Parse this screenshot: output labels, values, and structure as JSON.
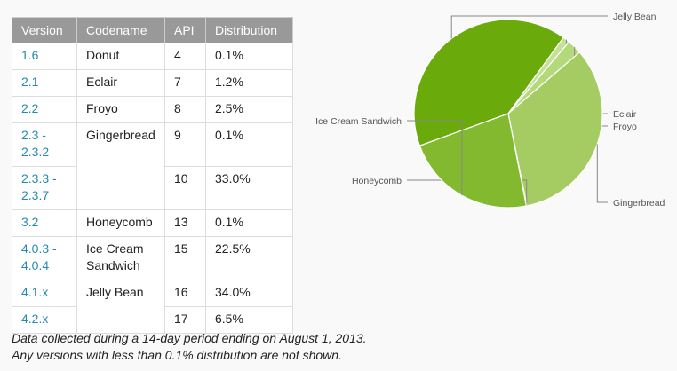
{
  "table": {
    "headers": [
      "Version",
      "Codename",
      "API",
      "Distribution"
    ],
    "rows": [
      {
        "version": "1.6",
        "codename": "Donut",
        "api": "4",
        "distribution": "0.1%"
      },
      {
        "version": "2.1",
        "codename": "Eclair",
        "api": "7",
        "distribution": "1.2%"
      },
      {
        "version": "2.2",
        "codename": "Froyo",
        "api": "8",
        "distribution": "2.5%"
      },
      {
        "version": "2.3 - 2.3.2",
        "codename": "Gingerbread",
        "api": "9",
        "distribution": "0.1%"
      },
      {
        "version": "2.3.3 - 2.3.7",
        "codename": "",
        "api": "10",
        "distribution": "33.0%"
      },
      {
        "version": "3.2",
        "codename": "Honeycomb",
        "api": "13",
        "distribution": "0.1%"
      },
      {
        "version": "4.0.3 - 4.0.4",
        "codename": "Ice Cream Sandwich",
        "api": "15",
        "distribution": "22.5%"
      },
      {
        "version": "4.1.x",
        "codename": "Jelly Bean",
        "api": "16",
        "distribution": "34.0%"
      },
      {
        "version": "4.2.x",
        "codename": "",
        "api": "17",
        "distribution": "6.5%"
      }
    ]
  },
  "notes": {
    "line1": "Data collected during a 14-day period ending on August 1, 2013.",
    "line2": "Any versions with less than 0.1% distribution are not shown."
  },
  "chart_data": {
    "type": "pie",
    "title": "",
    "start_angle_deg": 200,
    "slices": [
      {
        "label": "Jelly Bean",
        "value": 40.5,
        "color": "#6aaa0a"
      },
      {
        "label": "Eclair",
        "value": 1.2,
        "color": "#c4e195"
      },
      {
        "label": "Froyo",
        "value": 2.5,
        "color": "#b4d97a"
      },
      {
        "label": "Gingerbread",
        "value": 33.1,
        "color": "#a4cc62"
      },
      {
        "label": "Honeycomb",
        "value": 0.1,
        "color": "#8bbf34"
      },
      {
        "label": "Ice Cream Sandwich",
        "value": 22.5,
        "color": "#82b92e"
      }
    ]
  }
}
